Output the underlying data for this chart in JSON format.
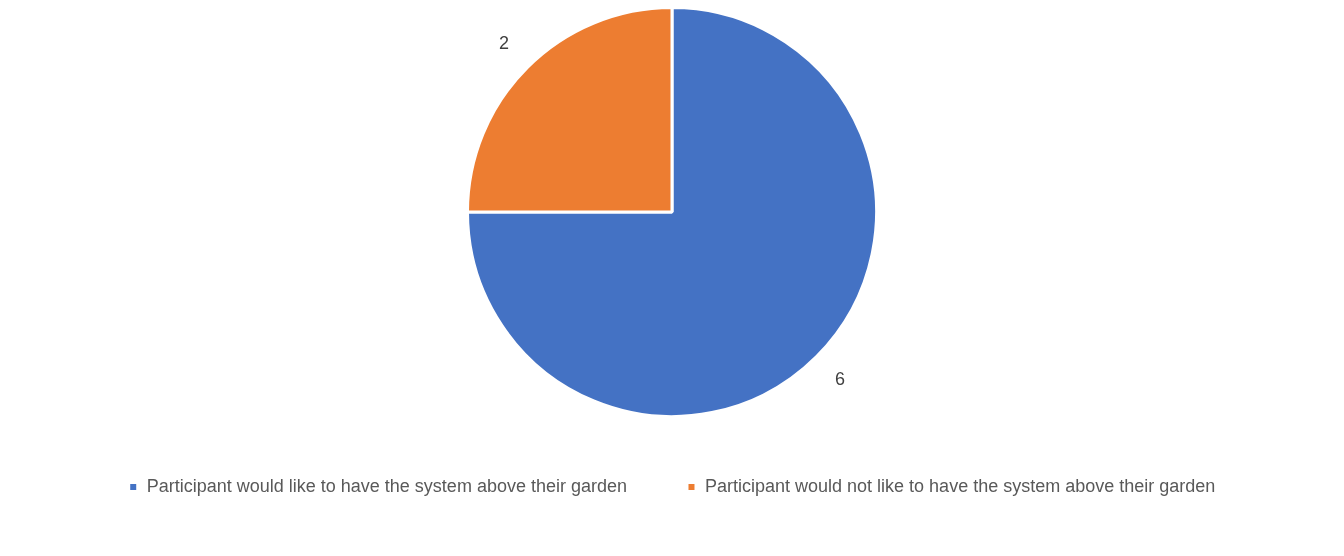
{
  "chart_data": {
    "type": "pie",
    "categories": [
      "Participant would like to have the system above their garden",
      "Participant would not like to have the system above their garden"
    ],
    "values": [
      6,
      2
    ],
    "colors": [
      "#4472c4",
      "#ed7d31"
    ],
    "data_labels": true,
    "legend": "bottom"
  }
}
